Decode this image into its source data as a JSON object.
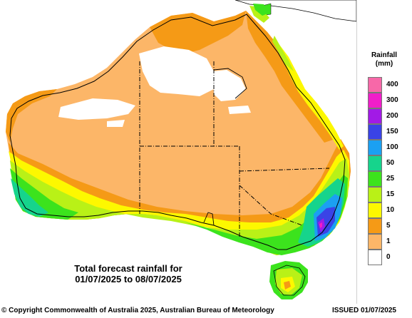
{
  "map": {
    "caption_line1": "Total forecast rainfall for",
    "caption_line2": "01/07/2025 to 08/07/2025",
    "colors": {
      "dry_white": "#ffffff",
      "r1": "#fcb668",
      "r5": "#f59a16",
      "r10": "#fdf800",
      "r15": "#b9f117",
      "r25": "#3ce31d",
      "r50": "#16d48c",
      "r100": "#1ba0f2",
      "r150": "#3a43e6",
      "r200": "#a21ae6",
      "r300": "#f41ec9",
      "r400": "#f75fa8",
      "coastline": "#000000",
      "state_border": "#000000"
    }
  },
  "legend": {
    "title_line1": "Rainfall",
    "title_line2": "(mm)",
    "levels": [
      {
        "label": "400",
        "color": "#f768a8"
      },
      {
        "label": "300",
        "color": "#f01ec9"
      },
      {
        "label": "200",
        "color": "#a21ae6"
      },
      {
        "label": "150",
        "color": "#3a43e6"
      },
      {
        "label": "100",
        "color": "#1ba0f2"
      },
      {
        "label": "50",
        "color": "#16d48c"
      },
      {
        "label": "25",
        "color": "#3ce31d"
      },
      {
        "label": "15",
        "color": "#b9f117"
      },
      {
        "label": "10",
        "color": "#fdf800"
      },
      {
        "label": "5",
        "color": "#f59a16"
      },
      {
        "label": "1",
        "color": "#fcb668"
      },
      {
        "label": "0",
        "color": "#ffffff"
      }
    ]
  },
  "footer": {
    "copyright": "© Copyright Commonwealth of Australia 2025, Australian Bureau of Meteorology",
    "issued": "ISSUED 01/07/2025"
  }
}
